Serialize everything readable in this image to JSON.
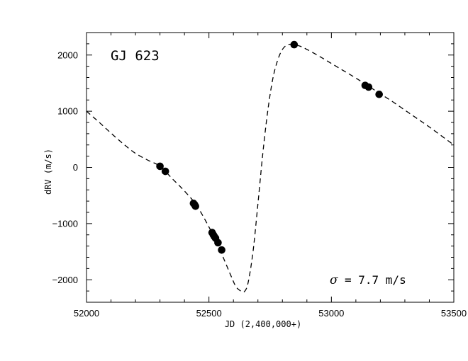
{
  "chart_data": {
    "type": "scatter",
    "title": "",
    "xlabel": "JD (2,400,000+)",
    "ylabel": "dRV (m/s)",
    "xlim": [
      52000,
      53500
    ],
    "ylim": [
      -2400,
      2400
    ],
    "x_ticks": [
      52000,
      52500,
      53000,
      53500
    ],
    "x_tick_labels": [
      "52000",
      "52500",
      "53000",
      "53500"
    ],
    "y_ticks": [
      -2000,
      -1000,
      0,
      1000,
      2000
    ],
    "y_tick_labels": [
      "−2000",
      "−1000",
      "0",
      "1000",
      "2000"
    ],
    "grid": false,
    "annotations": {
      "object_name": "GJ 623",
      "sigma_symbol": "σ",
      "sigma_text": "= 7.7 m/s"
    },
    "series": [
      {
        "kind": "points",
        "x": [
          52300,
          52322,
          52437,
          52441,
          52445,
          52513,
          52518,
          52522,
          52527,
          52537,
          52552,
          52848,
          53138,
          53152,
          53195
        ],
        "y": [
          20,
          -70,
          -640,
          -660,
          -690,
          -1160,
          -1200,
          -1230,
          -1260,
          -1340,
          -1470,
          2185,
          1460,
          1430,
          1300
        ]
      },
      {
        "kind": "model-curve",
        "style": "dashed",
        "x": [
          52000,
          52050,
          52100,
          52150,
          52200,
          52250,
          52300,
          52350,
          52400,
          52450,
          52500,
          52530,
          52560,
          52590,
          52610,
          52630,
          52645,
          52660,
          52680,
          52700,
          52720,
          52740,
          52760,
          52780,
          52800,
          52820,
          52840,
          52870,
          52900,
          52950,
          53000,
          53050,
          53100,
          53150,
          53200,
          53250,
          53300,
          53350,
          53400,
          53450,
          53500
        ],
        "y": [
          1000,
          810,
          610,
          420,
          250,
          130,
          20,
          -200,
          -420,
          -680,
          -1060,
          -1320,
          -1620,
          -1930,
          -2120,
          -2200,
          -2210,
          -2050,
          -1500,
          -650,
          250,
          1000,
          1560,
          1900,
          2100,
          2180,
          2190,
          2160,
          2100,
          1980,
          1850,
          1720,
          1590,
          1450,
          1310,
          1170,
          1020,
          870,
          720,
          560,
          400
        ]
      }
    ]
  }
}
